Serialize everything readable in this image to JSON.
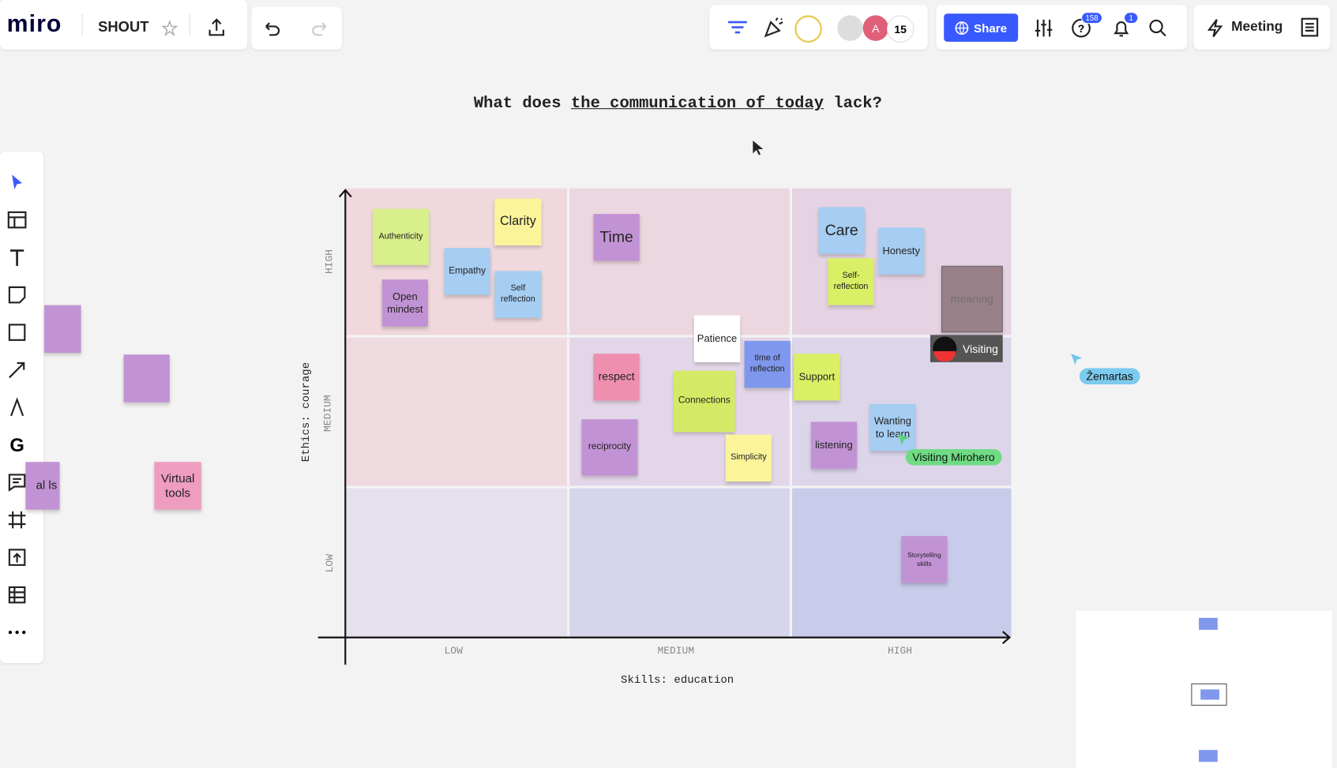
{
  "toolbar": {
    "logo": "miro",
    "board_name": "SHOUT",
    "avatar_letter": "A",
    "collaborators": "15",
    "share": "Share",
    "help_badge": "158",
    "notifications_badge": "1",
    "meeting": "Meeting"
  },
  "board": {
    "title": {
      "lead": "What does",
      "underlined": "the communication of today",
      "tail": "lack?"
    },
    "y_axis": {
      "label": "Ethics: courage",
      "ticks": [
        "HIGH",
        "MEDIUM",
        "LOW"
      ]
    },
    "x_axis": {
      "label": "Skills: education",
      "ticks": [
        "LOW",
        "MEDIUM",
        "HIGH"
      ]
    },
    "notes": [
      "Authenticity",
      "Clarity",
      "Empathy",
      "Open mindest",
      "Self reflection",
      "Time",
      "Care",
      "Honesty",
      "Self-reflection",
      "meaning",
      "Patience",
      "time of reflection",
      "respect",
      "Connections",
      "Support",
      "reciprocity",
      "Simplicity",
      "listening",
      "Wanting to learn",
      "Storytelling skills"
    ],
    "side_notes": [
      "al ls",
      "Virtual tools"
    ]
  },
  "cursors": {
    "visiting": "Visiting",
    "zemartas": "Žemartas",
    "mirohero": "Visiting Mirohero"
  }
}
